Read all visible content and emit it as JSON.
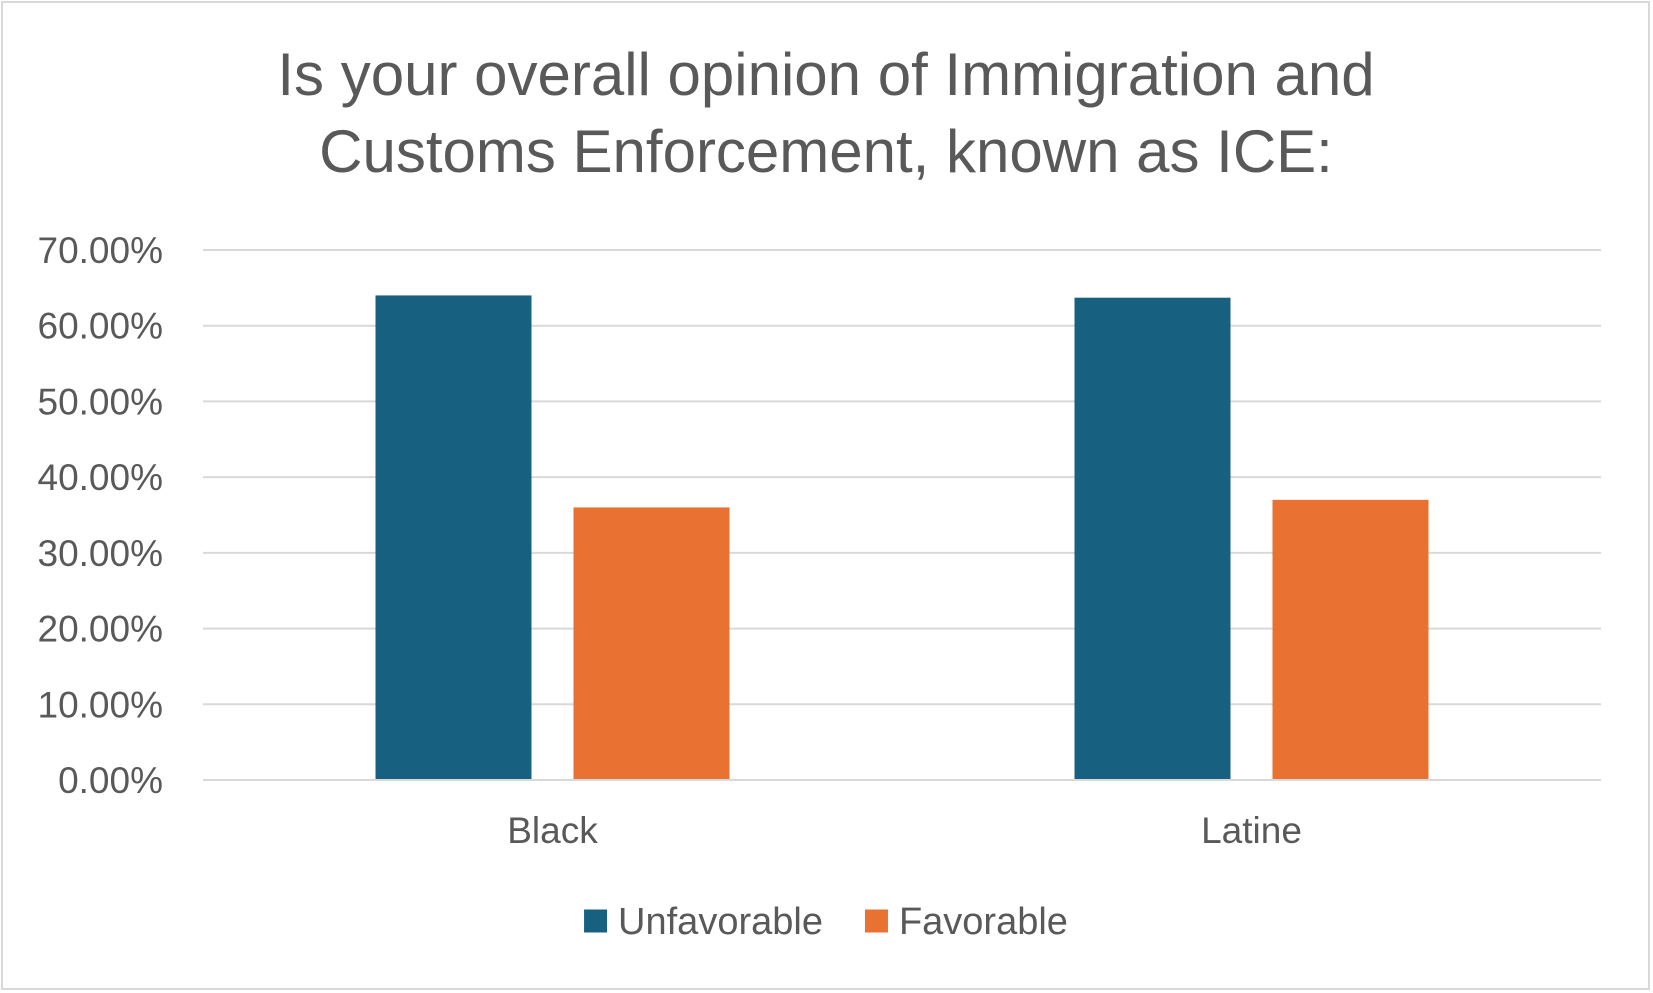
{
  "chart_data": {
    "type": "bar",
    "title_lines": [
      "Is your overall opinion of Immigration and",
      "Customs Enforcement, known as ICE:"
    ],
    "xlabel": "",
    "ylabel": "",
    "ylim": [
      0,
      70
    ],
    "y_ticks": [
      0,
      10,
      20,
      30,
      40,
      50,
      60,
      70
    ],
    "y_tick_labels": [
      "0.00%",
      "10.00%",
      "20.00%",
      "30.00%",
      "40.00%",
      "50.00%",
      "60.00%",
      "70.00%"
    ],
    "grid": true,
    "legend_position": "bottom",
    "categories": [
      "Black",
      "Latine"
    ],
    "series": [
      {
        "name": "Unfavorable",
        "color": "#17607f",
        "values": [
          64.0,
          63.7
        ]
      },
      {
        "name": "Favorable",
        "color": "#e97233",
        "values": [
          36.0,
          37.0
        ]
      }
    ]
  }
}
